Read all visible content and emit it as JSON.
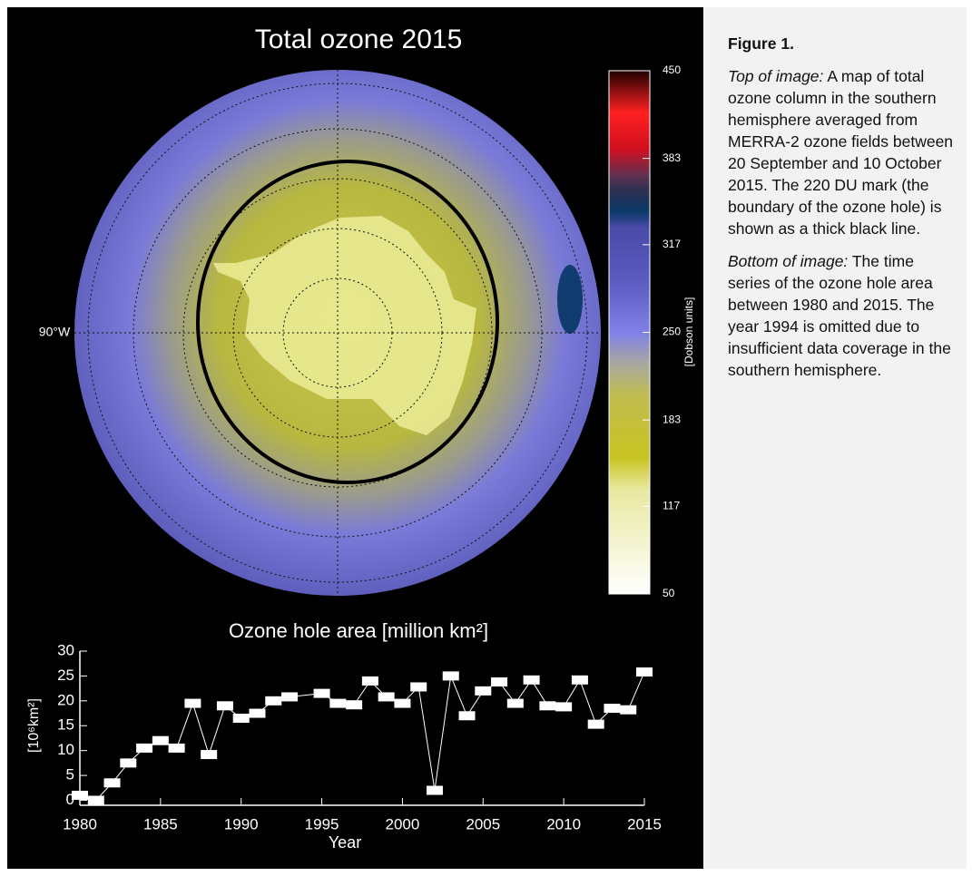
{
  "map": {
    "title": "Total ozone 2015",
    "meridian_label": "90°W",
    "colorbar": {
      "label": "[Dobson units]",
      "lim": [
        50,
        450
      ],
      "ticks": [
        50,
        117,
        183,
        250,
        317,
        383,
        450
      ]
    }
  },
  "chart_data": {
    "type": "line",
    "title": "Ozone hole area [million km²]",
    "x_label": "Year",
    "y_label": "[10⁶km²]",
    "x": [
      1980,
      1981,
      1982,
      1983,
      1984,
      1985,
      1986,
      1987,
      1988,
      1989,
      1990,
      1991,
      1992,
      1993,
      1995,
      1996,
      1997,
      1998,
      1999,
      2000,
      2001,
      2002,
      2003,
      2004,
      2005,
      2006,
      2007,
      2008,
      2009,
      2010,
      2011,
      2012,
      2013,
      2014,
      2015
    ],
    "values": [
      1.0,
      0,
      3.5,
      7.5,
      10.5,
      12,
      10.5,
      19.5,
      9.2,
      19,
      16.5,
      17.5,
      20,
      20.8,
      21.5,
      19.5,
      19.2,
      24,
      20.8,
      19.5,
      22.8,
      2,
      25,
      17,
      22,
      23.8,
      19.5,
      24.2,
      19,
      18.8,
      24.2,
      15.3,
      18.5,
      18.2,
      25.8
    ],
    "color": "#ffffff",
    "xlim": [
      1980,
      2015
    ],
    "xticks": [
      1980,
      1985,
      1990,
      1995,
      2000,
      2005,
      2010,
      2015
    ],
    "ylim": [
      -1,
      30
    ],
    "yticks": [
      0,
      5,
      10,
      15,
      20,
      25,
      30
    ]
  },
  "caption": {
    "title": "Figure 1.",
    "paragraphs": [
      {
        "lead": "Top of image:",
        "text": "A map of total ozone column in the southern hemisphere averaged from MERRA-2 ozone fields between 20 September and 10 October 2015. The 220 DU mark (the boundary of the ozone hole) is shown as a thick black line."
      },
      {
        "lead": "Bottom of image:",
        "text": "The time series of the ozone hole area between 1980 and 2015. The year 1994 is omitted due to insufficient data coverage in the southern hemisphere."
      }
    ]
  }
}
